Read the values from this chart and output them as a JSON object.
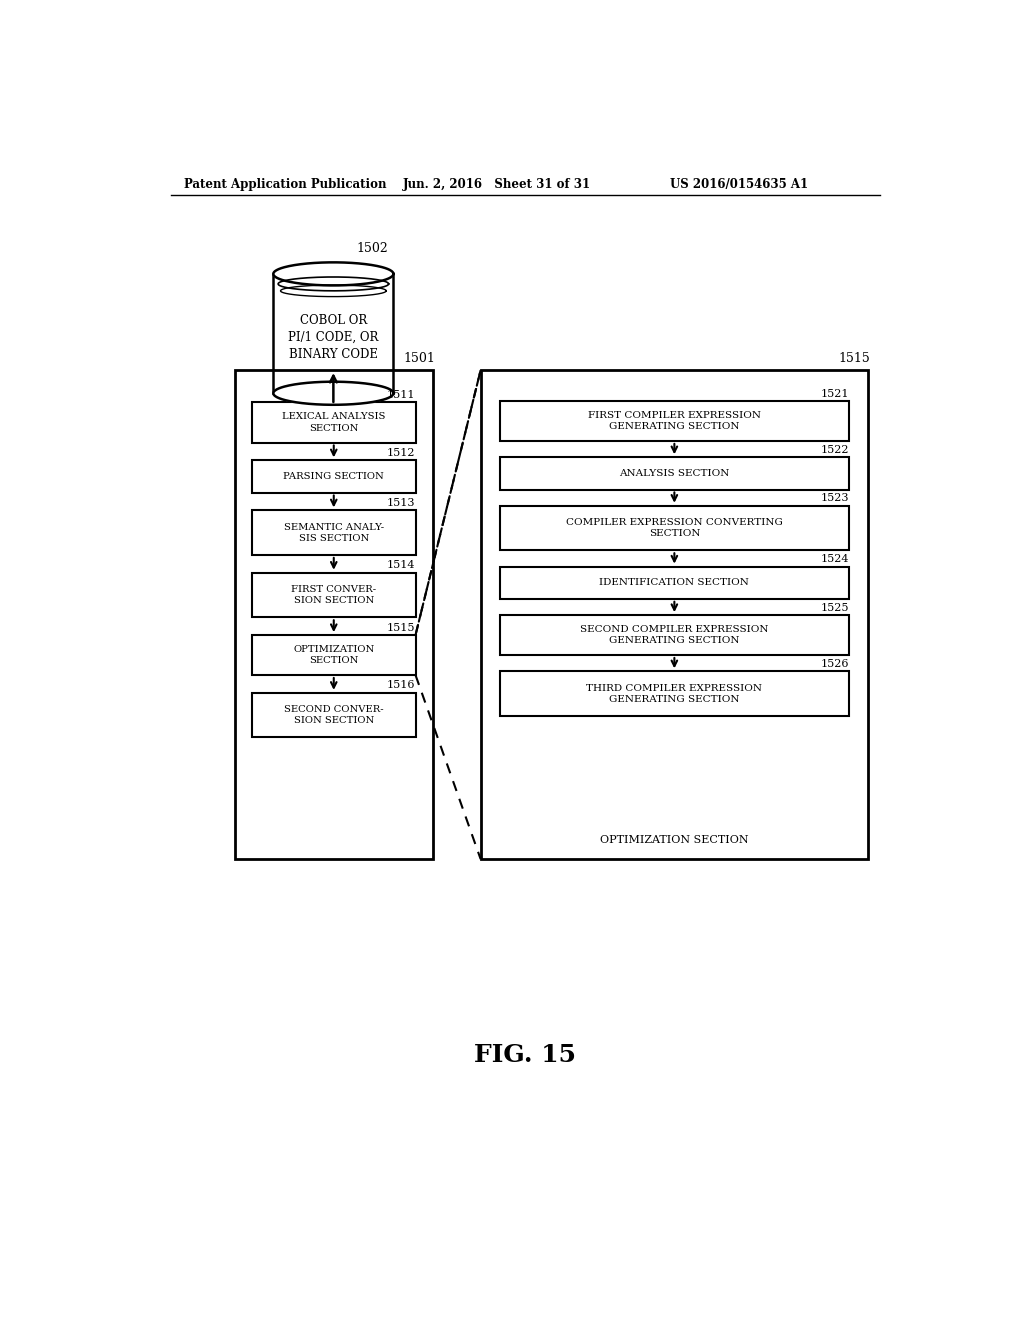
{
  "header_left": "Patent Application Publication",
  "header_mid": "Jun. 2, 2016   Sheet 31 of 31",
  "header_right": "US 2016/0154635 A1",
  "fig_label": "FIG. 15",
  "db_label": "1502",
  "db_text": "COBOL OR\nPI/1 CODE, OR\nBINARY CODE",
  "left_box_label": "1501",
  "left_boxes": [
    {
      "id": "1511",
      "text": "LEXICAL ANALYSIS\nSECTION"
    },
    {
      "id": "1512",
      "text": "PARSING SECTION"
    },
    {
      "id": "1513",
      "text": "SEMANTIC ANALY-\nSIS SECTION"
    },
    {
      "id": "1514",
      "text": "FIRST CONVER-\nSION SECTION"
    },
    {
      "id": "1515",
      "text": "OPTIMIZATION\nSECTION"
    },
    {
      "id": "1516",
      "text": "SECOND CONVER-\nSION SECTION"
    }
  ],
  "right_box_label": "1515",
  "right_box_footer": "OPTIMIZATION SECTION",
  "right_boxes": [
    {
      "id": "1521",
      "text": "FIRST COMPILER EXPRESSION\nGENERATING SECTION"
    },
    {
      "id": "1522",
      "text": "ANALYSIS SECTION"
    },
    {
      "id": "1523",
      "text": "COMPILER EXPRESSION CONVERTING\nSECTION"
    },
    {
      "id": "1524",
      "text": "IDENTIFICATION SECTION"
    },
    {
      "id": "1525",
      "text": "SECOND COMPILER EXPRESSION\nGENERATING SECTION"
    },
    {
      "id": "1526",
      "text": "THIRD COMPILER EXPRESSION\nGENERATING SECTION"
    }
  ]
}
